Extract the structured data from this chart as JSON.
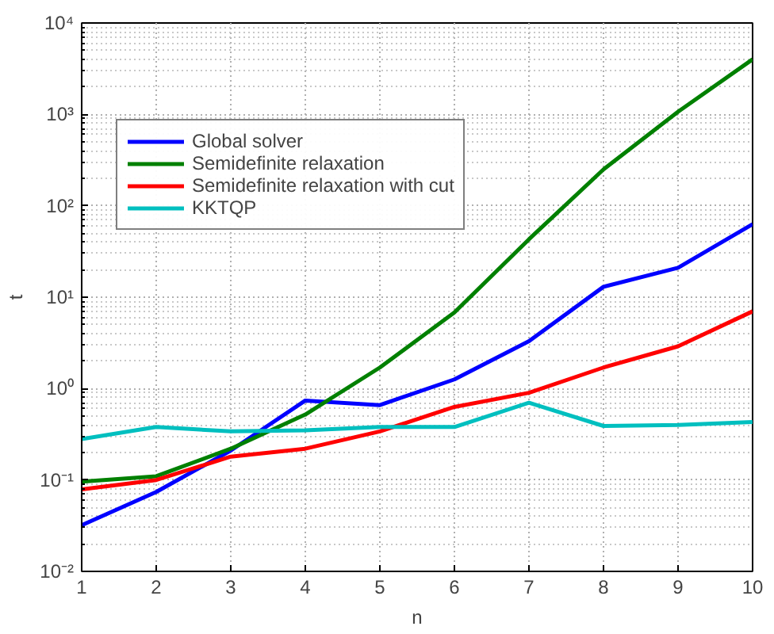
{
  "chart_data": {
    "type": "line",
    "xlabel": "n",
    "ylabel": "t",
    "x": [
      1,
      2,
      3,
      4,
      5,
      6,
      7,
      8,
      9,
      10
    ],
    "series": [
      {
        "name": "Global solver",
        "color": "#0000ff",
        "values": [
          0.032,
          0.074,
          0.21,
          0.74,
          0.66,
          1.26,
          3.3,
          13,
          21,
          63
        ]
      },
      {
        "name": "Semidefinite relaxation",
        "color": "#008000",
        "values": [
          0.096,
          0.11,
          0.22,
          0.52,
          1.7,
          6.8,
          43,
          250,
          1070,
          4000
        ]
      },
      {
        "name": "Semidefinite relaxation with cut",
        "color": "#ff0000",
        "values": [
          0.079,
          0.1,
          0.18,
          0.22,
          0.34,
          0.63,
          0.9,
          1.7,
          2.9,
          7
        ]
      },
      {
        "name": "KKTQP",
        "color": "#00bfbf",
        "values": [
          0.28,
          0.38,
          0.34,
          0.35,
          0.38,
          0.38,
          0.7,
          0.39,
          0.4,
          0.43
        ]
      }
    ],
    "xlim": [
      1,
      10
    ],
    "ylim": [
      0.01,
      10000
    ],
    "log": "y",
    "xticks": [
      1,
      2,
      3,
      4,
      5,
      6,
      7,
      8,
      9,
      10
    ],
    "yticks": [
      {
        "value": 0.01,
        "label": "10⁻²"
      },
      {
        "value": 0.1,
        "label": "10⁻¹"
      },
      {
        "value": 1,
        "label": "10⁰"
      },
      {
        "value": 10,
        "label": "10¹"
      },
      {
        "value": 100,
        "label": "10²"
      },
      {
        "value": 1000,
        "label": "10³"
      },
      {
        "value": 10000,
        "label": "10⁴"
      }
    ],
    "grid": true,
    "legend": "top left",
    "line_style": "solid",
    "marker": "none"
  }
}
